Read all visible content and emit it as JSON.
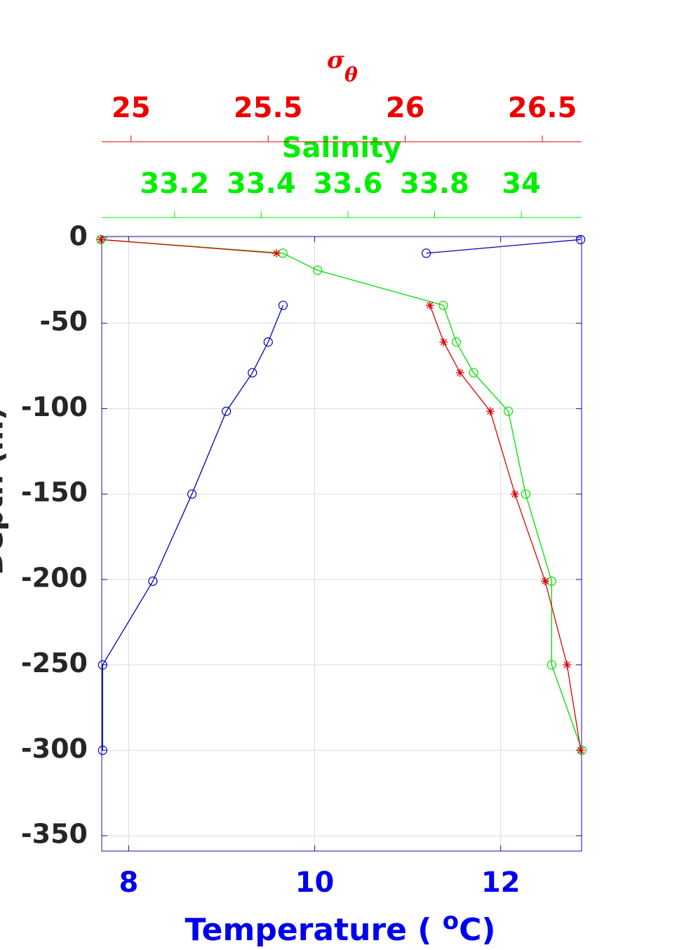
{
  "chart_data": {
    "type": "profile",
    "depth": [
      -1,
      -9,
      -19,
      -39.5,
      -61,
      -79,
      -101.5,
      -150,
      -201,
      -250,
      -300
    ],
    "ylim": [
      -359,
      0
    ],
    "yticks": [
      -350,
      -300,
      -250,
      -200,
      -150,
      -100,
      -50,
      0
    ],
    "ylabel": "Depth (m)",
    "grid": true,
    "x_axes": [
      {
        "label": [
          "Temperature ( ",
          "o",
          "C)"
        ],
        "color": "#0000ee",
        "xlim": [
          7.71,
          12.87
        ],
        "xticks": [
          8,
          10,
          12
        ]
      },
      {
        "label": [
          "Salinity"
        ],
        "color": "#00ee00",
        "xlim": [
          33.032,
          34.139
        ],
        "xticks": [
          33.2,
          33.4,
          33.6,
          33.8,
          34
        ]
      },
      {
        "label": [
          "σ",
          "θ"
        ],
        "color": "#ee0000",
        "xlim": [
          24.893,
          26.643
        ],
        "xticks": [
          25,
          25.5,
          26,
          26.5
        ]
      }
    ],
    "series": [
      {
        "axis": 0,
        "color": "#0000c0",
        "marker": "circle",
        "values": [
          12.86,
          11.2,
          null,
          9.66,
          9.5,
          9.33,
          9.05,
          8.68,
          8.26,
          7.72,
          7.72
        ]
      },
      {
        "axis": 1,
        "color": "#00e000",
        "marker": "circle",
        "values": [
          33.03,
          33.45,
          33.53,
          33.82,
          33.85,
          33.89,
          33.97,
          34.01,
          34.07,
          34.07,
          34.14
        ]
      },
      {
        "axis": 2,
        "color": "#dd0000",
        "marker": "star",
        "values": [
          24.89,
          25.53,
          null,
          26.09,
          26.14,
          26.2,
          26.31,
          26.4,
          26.51,
          26.59,
          26.64
        ]
      }
    ]
  }
}
